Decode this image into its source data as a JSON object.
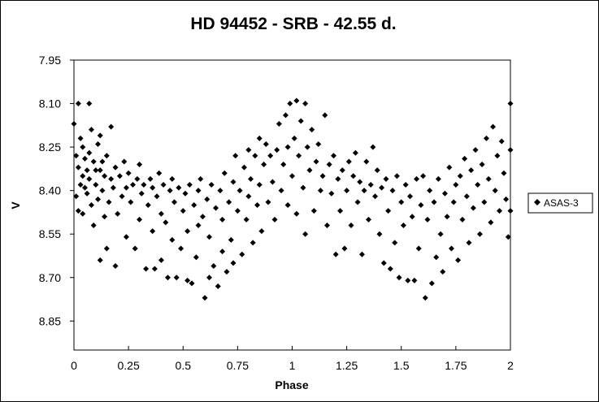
{
  "chart_data": {
    "type": "scatter",
    "title": "HD 94452 - SRB - 42.55 d.",
    "xlabel": "Phase",
    "ylabel": "V",
    "xlim": [
      0,
      2
    ],
    "ylim": [
      7.95,
      8.95
    ],
    "y_inverted": true,
    "x_ticks": [
      "0",
      "0.25",
      "0.5",
      "0.75",
      "1",
      "1.25",
      "1.5",
      "1.75",
      "2"
    ],
    "y_ticks": [
      "7.95",
      "8.10",
      "8.25",
      "8.40",
      "8.55",
      "8.70",
      "8.85"
    ],
    "grid": false,
    "legend_position": "right",
    "marker": "diamond",
    "colors": {
      "points": "#000000",
      "axes": "#000000",
      "background": "#ffffff"
    },
    "series": [
      {
        "name": "ASAS-3",
        "points": [
          [
            0.0,
            8.17
          ],
          [
            0.01,
            8.28
          ],
          [
            0.01,
            8.42
          ],
          [
            0.02,
            8.1
          ],
          [
            0.02,
            8.32
          ],
          [
            0.02,
            8.47
          ],
          [
            0.03,
            8.22
          ],
          [
            0.03,
            8.38
          ],
          [
            0.04,
            8.35
          ],
          [
            0.04,
            8.25
          ],
          [
            0.04,
            8.48
          ],
          [
            0.05,
            8.29
          ],
          [
            0.05,
            8.39
          ],
          [
            0.06,
            8.33
          ],
          [
            0.06,
            8.41
          ],
          [
            0.07,
            8.1
          ],
          [
            0.07,
            8.27
          ],
          [
            0.07,
            8.36
          ],
          [
            0.08,
            8.45
          ],
          [
            0.08,
            8.19
          ],
          [
            0.09,
            8.3
          ],
          [
            0.09,
            8.52
          ],
          [
            0.1,
            8.33
          ],
          [
            0.1,
            8.38
          ],
          [
            0.11,
            8.24
          ],
          [
            0.11,
            8.43
          ],
          [
            0.12,
            8.21
          ],
          [
            0.12,
            8.33
          ],
          [
            0.12,
            8.64
          ],
          [
            0.13,
            8.4
          ],
          [
            0.13,
            8.3
          ],
          [
            0.14,
            8.49
          ],
          [
            0.14,
            8.35
          ],
          [
            0.15,
            8.28
          ],
          [
            0.15,
            8.6
          ],
          [
            0.16,
            8.44
          ],
          [
            0.17,
            8.18
          ],
          [
            0.17,
            8.36
          ],
          [
            0.18,
            8.39
          ],
          [
            0.19,
            8.66
          ],
          [
            0.19,
            8.32
          ],
          [
            0.2,
            8.48
          ],
          [
            0.21,
            8.35
          ],
          [
            0.22,
            8.42
          ],
          [
            0.23,
            8.3
          ],
          [
            0.24,
            8.56
          ],
          [
            0.24,
            8.39
          ],
          [
            0.25,
            8.34
          ],
          [
            0.26,
            8.44
          ],
          [
            0.27,
            8.38
          ],
          [
            0.28,
            8.6
          ],
          [
            0.29,
            8.36
          ],
          [
            0.3,
            8.5
          ],
          [
            0.3,
            8.31
          ],
          [
            0.31,
            8.41
          ],
          [
            0.32,
            8.38
          ],
          [
            0.33,
            8.67
          ],
          [
            0.34,
            8.45
          ],
          [
            0.35,
            8.36
          ],
          [
            0.36,
            8.54
          ],
          [
            0.36,
            8.39
          ],
          [
            0.37,
            8.67
          ],
          [
            0.38,
            8.42
          ],
          [
            0.39,
            8.34
          ],
          [
            0.4,
            8.48
          ],
          [
            0.4,
            8.64
          ],
          [
            0.41,
            8.38
          ],
          [
            0.42,
            8.51
          ],
          [
            0.43,
            8.7
          ],
          [
            0.44,
            8.4
          ],
          [
            0.45,
            8.57
          ],
          [
            0.45,
            8.36
          ],
          [
            0.46,
            8.44
          ],
          [
            0.47,
            8.7
          ],
          [
            0.48,
            8.39
          ],
          [
            0.49,
            8.6
          ],
          [
            0.5,
            8.47
          ],
          [
            0.51,
            8.41
          ],
          [
            0.52,
            8.71
          ],
          [
            0.52,
            8.54
          ],
          [
            0.53,
            8.38
          ],
          [
            0.54,
            8.72
          ],
          [
            0.55,
            8.45
          ],
          [
            0.56,
            8.63
          ],
          [
            0.57,
            8.4
          ],
          [
            0.57,
            8.52
          ],
          [
            0.58,
            8.36
          ],
          [
            0.59,
            8.49
          ],
          [
            0.6,
            8.77
          ],
          [
            0.61,
            8.43
          ],
          [
            0.62,
            8.7
          ],
          [
            0.62,
            8.56
          ],
          [
            0.63,
            8.38
          ],
          [
            0.64,
            8.66
          ],
          [
            0.65,
            8.46
          ],
          [
            0.66,
            8.73
          ],
          [
            0.67,
            8.4
          ],
          [
            0.68,
            8.61
          ],
          [
            0.68,
            8.5
          ],
          [
            0.69,
            8.34
          ],
          [
            0.7,
            8.68
          ],
          [
            0.71,
            8.44
          ],
          [
            0.72,
            8.57
          ],
          [
            0.73,
            8.37
          ],
          [
            0.73,
            8.65
          ],
          [
            0.74,
            8.28
          ],
          [
            0.75,
            8.47
          ],
          [
            0.76,
            8.4
          ],
          [
            0.77,
            8.62
          ],
          [
            0.78,
            8.32
          ],
          [
            0.79,
            8.5
          ],
          [
            0.8,
            8.26
          ],
          [
            0.8,
            8.42
          ],
          [
            0.81,
            8.36
          ],
          [
            0.82,
            8.58
          ],
          [
            0.83,
            8.28
          ],
          [
            0.84,
            8.45
          ],
          [
            0.85,
            8.22
          ],
          [
            0.85,
            8.38
          ],
          [
            0.86,
            8.54
          ],
          [
            0.87,
            8.31
          ],
          [
            0.88,
            8.24
          ],
          [
            0.89,
            8.44
          ],
          [
            0.9,
            8.28
          ],
          [
            0.91,
            8.37
          ],
          [
            0.92,
            8.5
          ],
          [
            0.93,
            8.26
          ],
          [
            0.94,
            8.17
          ],
          [
            0.95,
            8.4
          ],
          [
            0.96,
            8.31
          ],
          [
            0.97,
            8.14
          ],
          [
            0.98,
            8.45
          ],
          [
            0.98,
            8.25
          ],
          [
            0.99,
            8.1
          ],
          [
            1.0,
            8.35
          ],
          [
            1.01,
            8.22
          ],
          [
            1.02,
            8.09
          ],
          [
            1.02,
            8.48
          ],
          [
            1.03,
            8.28
          ],
          [
            1.04,
            8.16
          ],
          [
            1.05,
            8.39
          ],
          [
            1.06,
            8.1
          ],
          [
            1.06,
            8.55
          ],
          [
            1.07,
            8.25
          ],
          [
            1.08,
            8.33
          ],
          [
            1.09,
            8.19
          ],
          [
            1.1,
            8.47
          ],
          [
            1.11,
            8.3
          ],
          [
            1.12,
            8.24
          ],
          [
            1.13,
            8.4
          ],
          [
            1.14,
            8.35
          ],
          [
            1.15,
            8.14
          ],
          [
            1.16,
            8.52
          ],
          [
            1.17,
            8.31
          ],
          [
            1.18,
            8.41
          ],
          [
            1.19,
            8.28
          ],
          [
            1.2,
            8.62
          ],
          [
            1.21,
            8.36
          ],
          [
            1.22,
            8.47
          ],
          [
            1.23,
            8.33
          ],
          [
            1.24,
            8.6
          ],
          [
            1.25,
            8.4
          ],
          [
            1.26,
            8.3
          ],
          [
            1.27,
            8.52
          ],
          [
            1.28,
            8.35
          ],
          [
            1.29,
            8.27
          ],
          [
            1.3,
            8.44
          ],
          [
            1.31,
            8.37
          ],
          [
            1.32,
            8.62
          ],
          [
            1.33,
            8.4
          ],
          [
            1.34,
            8.3
          ],
          [
            1.35,
            8.5
          ],
          [
            1.36,
            8.38
          ],
          [
            1.37,
            8.25
          ],
          [
            1.38,
            8.42
          ],
          [
            1.39,
            8.33
          ],
          [
            1.4,
            8.55
          ],
          [
            1.41,
            8.39
          ],
          [
            1.42,
            8.65
          ],
          [
            1.43,
            8.36
          ],
          [
            1.44,
            8.47
          ],
          [
            1.45,
            8.67
          ],
          [
            1.46,
            8.4
          ],
          [
            1.47,
            8.58
          ],
          [
            1.48,
            8.35
          ],
          [
            1.49,
            8.7
          ],
          [
            1.5,
            8.44
          ],
          [
            1.51,
            8.52
          ],
          [
            1.52,
            8.38
          ],
          [
            1.53,
            8.71
          ],
          [
            1.54,
            8.42
          ],
          [
            1.55,
            8.49
          ],
          [
            1.56,
            8.71
          ],
          [
            1.57,
            8.36
          ],
          [
            1.58,
            8.6
          ],
          [
            1.59,
            8.45
          ],
          [
            1.6,
            8.35
          ],
          [
            1.61,
            8.77
          ],
          [
            1.62,
            8.5
          ],
          [
            1.63,
            8.4
          ],
          [
            1.64,
            8.72
          ],
          [
            1.65,
            8.44
          ],
          [
            1.66,
            8.63
          ],
          [
            1.67,
            8.36
          ],
          [
            1.68,
            8.55
          ],
          [
            1.69,
            8.68
          ],
          [
            1.7,
            8.41
          ],
          [
            1.71,
            8.49
          ],
          [
            1.72,
            8.32
          ],
          [
            1.73,
            8.6
          ],
          [
            1.74,
            8.44
          ],
          [
            1.75,
            8.38
          ],
          [
            1.76,
            8.64
          ],
          [
            1.77,
            8.35
          ],
          [
            1.78,
            8.5
          ],
          [
            1.79,
            8.29
          ],
          [
            1.8,
            8.42
          ],
          [
            1.81,
            8.58
          ],
          [
            1.82,
            8.33
          ],
          [
            1.83,
            8.46
          ],
          [
            1.84,
            8.26
          ],
          [
            1.85,
            8.38
          ],
          [
            1.86,
            8.55
          ],
          [
            1.87,
            8.31
          ],
          [
            1.88,
            8.44
          ],
          [
            1.89,
            8.22
          ],
          [
            1.9,
            8.36
          ],
          [
            1.91,
            8.51
          ],
          [
            1.92,
            8.18
          ],
          [
            1.93,
            8.4
          ],
          [
            1.94,
            8.28
          ],
          [
            1.95,
            8.47
          ],
          [
            1.96,
            8.23
          ],
          [
            1.97,
            8.34
          ],
          [
            1.98,
            8.43
          ],
          [
            1.99,
            8.56
          ],
          [
            2.0,
            8.1
          ],
          [
            2.0,
            8.26
          ],
          [
            2.0,
            8.47
          ]
        ]
      }
    ]
  }
}
